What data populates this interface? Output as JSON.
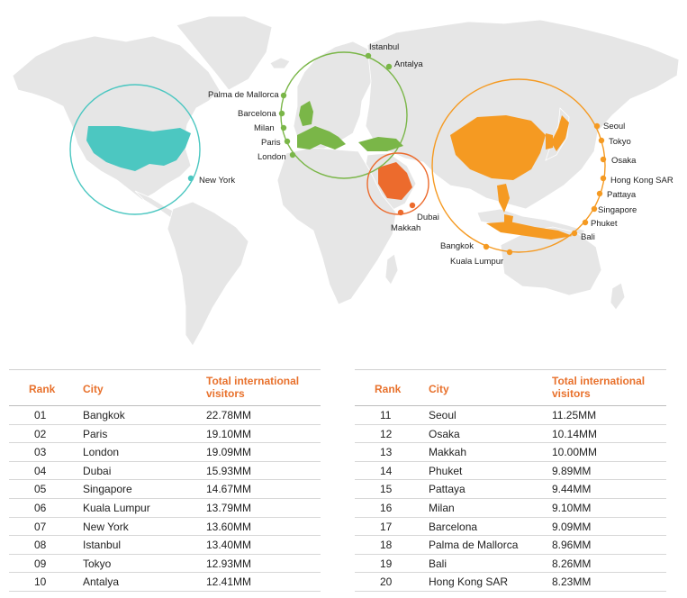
{
  "colors": {
    "land": "#e6e6e6",
    "border": "#ffffff",
    "americas": "#4cc7c1",
    "europe": "#7ab648",
    "middle_east": "#ec6b2d",
    "asia": "#f59a22",
    "header_text": "#e8712c"
  },
  "map": {
    "labels": {
      "istanbul": "Istanbul",
      "antalya": "Antalya",
      "palma": "Palma de Mallorca",
      "barcelona": "Barcelona",
      "milan": "Milan",
      "paris": "Paris",
      "london": "London",
      "new_york": "New York",
      "dubai": "Dubai",
      "makkah": "Makkah",
      "seoul": "Seoul",
      "tokyo": "Tokyo",
      "osaka": "Osaka",
      "hong_kong": "Hong Kong SAR",
      "pattaya": "Pattaya",
      "singapore": "Singapore",
      "phuket": "Phuket",
      "bali": "Bali",
      "bangkok": "Bangkok",
      "kuala_lumpur": "Kuala Lumpur"
    }
  },
  "tables": {
    "headers": {
      "rank": "Rank",
      "city": "City",
      "visitors": "Total international visitors"
    },
    "left": [
      {
        "rank": "01",
        "city": "Bangkok",
        "visitors": "22.78MM"
      },
      {
        "rank": "02",
        "city": "Paris",
        "visitors": "19.10MM"
      },
      {
        "rank": "03",
        "city": "London",
        "visitors": "19.09MM"
      },
      {
        "rank": "04",
        "city": "Dubai",
        "visitors": "15.93MM"
      },
      {
        "rank": "05",
        "city": "Singapore",
        "visitors": "14.67MM"
      },
      {
        "rank": "06",
        "city": "Kuala Lumpur",
        "visitors": "13.79MM"
      },
      {
        "rank": "07",
        "city": "New York",
        "visitors": "13.60MM"
      },
      {
        "rank": "08",
        "city": "Istanbul",
        "visitors": "13.40MM"
      },
      {
        "rank": "09",
        "city": "Tokyo",
        "visitors": "12.93MM"
      },
      {
        "rank": "10",
        "city": "Antalya",
        "visitors": "12.41MM"
      }
    ],
    "right": [
      {
        "rank": "11",
        "city": "Seoul",
        "visitors": "11.25MM"
      },
      {
        "rank": "12",
        "city": "Osaka",
        "visitors": "10.14MM"
      },
      {
        "rank": "13",
        "city": "Makkah",
        "visitors": "10.00MM"
      },
      {
        "rank": "14",
        "city": "Phuket",
        "visitors": "9.89MM"
      },
      {
        "rank": "15",
        "city": "Pattaya",
        "visitors": "9.44MM"
      },
      {
        "rank": "16",
        "city": "Milan",
        "visitors": "9.10MM"
      },
      {
        "rank": "17",
        "city": "Barcelona",
        "visitors": "9.09MM"
      },
      {
        "rank": "18",
        "city": "Palma de Mallorca",
        "visitors": "8.96MM"
      },
      {
        "rank": "19",
        "city": "Bali",
        "visitors": "8.26MM"
      },
      {
        "rank": "20",
        "city": "Hong Kong SAR",
        "visitors": "8.23MM"
      }
    ]
  }
}
